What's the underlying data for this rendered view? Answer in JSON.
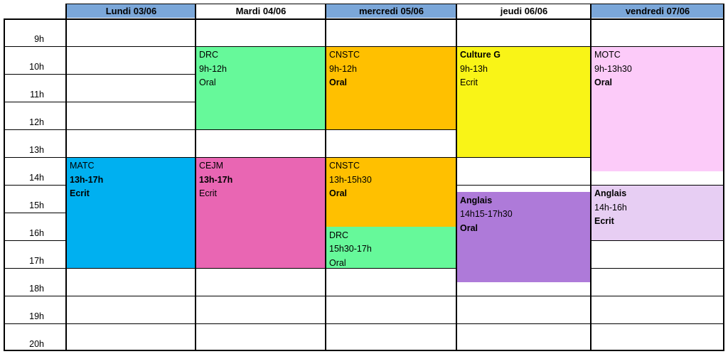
{
  "days": [
    {
      "label": "Lundi 03/06",
      "blue": true
    },
    {
      "label": "Mardi 04/06",
      "blue": false
    },
    {
      "label": "mercredi 05/06",
      "blue": true
    },
    {
      "label": "jeudi 06/06",
      "blue": false
    },
    {
      "label": "vendredi 07/06",
      "blue": true
    }
  ],
  "hours": [
    "9h",
    "10h",
    "11h",
    "12h",
    "13h",
    "14h",
    "15h",
    "16h",
    "17h",
    "18h",
    "19h",
    "20h"
  ],
  "events": [
    {
      "day": 0,
      "start": "13h",
      "end": "17h",
      "color": "#00b0f0",
      "lines": [
        {
          "t": "MATC",
          "b": false
        },
        {
          "t": "13h-17h",
          "b": true
        },
        {
          "t": "Ecrit",
          "b": true
        }
      ]
    },
    {
      "day": 1,
      "start": "9h",
      "end": "12h",
      "color": "#66f99a",
      "lines": [
        {
          "t": "DRC",
          "b": false
        },
        {
          "t": "9h-12h",
          "b": false
        },
        {
          "t": "Oral",
          "b": false
        }
      ]
    },
    {
      "day": 1,
      "start": "13h",
      "end": "17h",
      "color": "#e966b3",
      "lines": [
        {
          "t": "CEJM",
          "b": false
        },
        {
          "t": "13h-17h",
          "b": true
        },
        {
          "t": "Ecrit",
          "b": false
        }
      ]
    },
    {
      "day": 2,
      "start": "9h",
      "end": "12h",
      "color": "#ffc000",
      "lines": [
        {
          "t": "CNSTC",
          "b": false
        },
        {
          "t": "9h-12h",
          "b": false
        },
        {
          "t": "Oral",
          "b": true
        }
      ]
    },
    {
      "day": 2,
      "start": "13h",
      "end": "15h30",
      "color": "#ffc000",
      "lines": [
        {
          "t": "CNSTC",
          "b": false
        },
        {
          "t": "13h-15h30",
          "b": false
        },
        {
          "t": "Oral",
          "b": true
        }
      ]
    },
    {
      "day": 2,
      "start": "15h30",
      "end": "17h",
      "color": "#66f99a",
      "lines": [
        {
          "t": "DRC",
          "b": false
        },
        {
          "t": "15h30-17h",
          "b": false
        },
        {
          "t": "Oral",
          "b": false
        }
      ]
    },
    {
      "day": 3,
      "start": "9h",
      "end": "13h",
      "color": "#f9f417",
      "lines": [
        {
          "t": "Culture G",
          "b": true
        },
        {
          "t": "9h-13h",
          "b": false
        },
        {
          "t": "Ecrit",
          "b": false
        }
      ]
    },
    {
      "day": 3,
      "start": "14h15",
      "end": "17h30",
      "color": "#ae7ad9",
      "lines": [
        {
          "t": "Anglais",
          "b": true
        },
        {
          "t": "14h15-17h30",
          "b": false
        },
        {
          "t": "Oral",
          "b": true
        }
      ]
    },
    {
      "day": 4,
      "start": "9h",
      "end": "13h30",
      "color": "#fccbf9",
      "lines": [
        {
          "t": "MOTC",
          "b": false
        },
        {
          "t": "9h-13h30",
          "b": false
        },
        {
          "t": "Oral",
          "b": true
        }
      ]
    },
    {
      "day": 4,
      "start": "14h",
      "end": "16h",
      "color": "#e7cef3",
      "lines": [
        {
          "t": "Anglais",
          "b": true
        },
        {
          "t": "14h-16h",
          "b": false
        },
        {
          "t": "Ecrit",
          "b": true
        }
      ]
    }
  ]
}
